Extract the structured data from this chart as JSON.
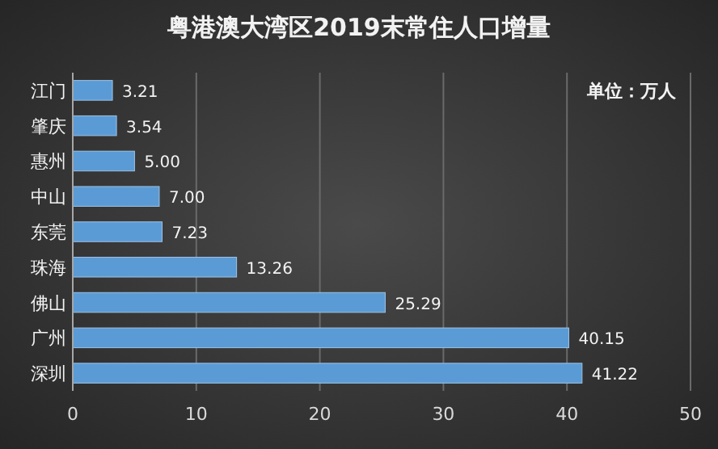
{
  "chart_data": {
    "type": "bar",
    "orientation": "horizontal",
    "title": "粤港澳大湾区2019末常住人口增量",
    "annotations": [
      "单位：万人"
    ],
    "categories": [
      "江门",
      "肇庆",
      "惠州",
      "中山",
      "东莞",
      "珠海",
      "佛山",
      "广州",
      "深圳"
    ],
    "values": [
      3.21,
      3.54,
      5.0,
      7.0,
      7.23,
      13.26,
      25.29,
      40.15,
      41.22
    ],
    "value_labels": [
      "3.21",
      "3.54",
      "5.00",
      "7.00",
      "7.23",
      "13.26",
      "25.29",
      "40.15",
      "41.22"
    ],
    "color": "#5b9bd5",
    "xlim": [
      0,
      50
    ],
    "xticks": [
      0,
      10,
      20,
      30,
      40,
      50
    ],
    "grid": "x"
  }
}
